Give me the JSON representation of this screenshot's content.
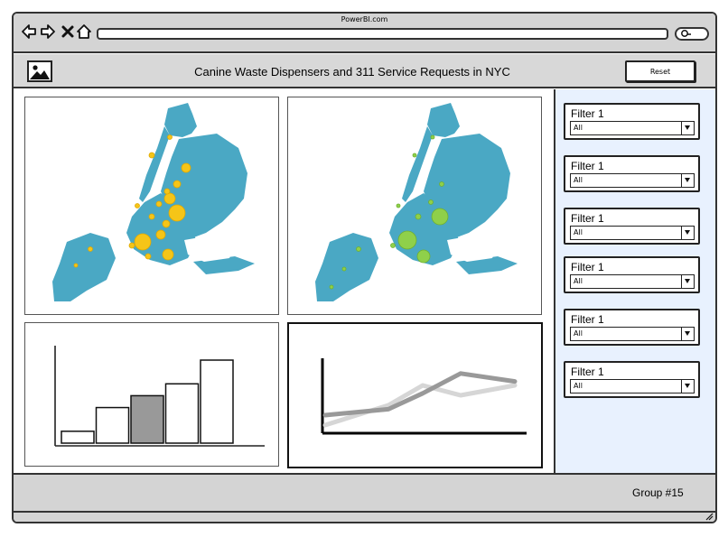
{
  "browser": {
    "title": "PowerBI.com",
    "nav_icons": [
      "back-arrow-icon",
      "forward-arrow-icon",
      "close-x-icon",
      "home-icon"
    ],
    "search_icon": "search-icon"
  },
  "header": {
    "logo_icon": "image-icon",
    "title": "Canine Waste Dispensers and 311 Service Requests in NYC",
    "reset_label": "Reset"
  },
  "maps": [
    {
      "name": "waste-dispensers-map",
      "land_color": "#4aa8c4",
      "marker_color": "#f5c518"
    },
    {
      "name": "service-requests-map",
      "land_color": "#4aa8c4",
      "marker_color": "#8fd04a"
    }
  ],
  "bar_chart": {
    "values": [
      1,
      3,
      4,
      5,
      7
    ],
    "highlight_index": 2,
    "colors": {
      "bar": "#ffffff",
      "highlight": "#999999"
    }
  },
  "line_chart": {
    "series": [
      {
        "values": [
          2,
          4,
          6,
          5,
          6
        ],
        "color": "#d6d6d6"
      },
      {
        "values": [
          3,
          3.6,
          5.2,
          7.2,
          6.4
        ],
        "color": "#999999"
      }
    ]
  },
  "filters": [
    {
      "label": "Filter 1",
      "value": "All"
    },
    {
      "label": "Filter 1",
      "value": "All"
    },
    {
      "label": "Filter 1",
      "value": "All"
    },
    {
      "label": "Filter 1",
      "value": "All"
    },
    {
      "label": "Filter 1",
      "value": "All"
    },
    {
      "label": "Filter 1",
      "value": "All"
    }
  ],
  "footer": {
    "text": "Group #15"
  },
  "colors": {
    "sidebar_bg": "#e8f1fe",
    "chrome_bg": "#d4d4d4"
  }
}
